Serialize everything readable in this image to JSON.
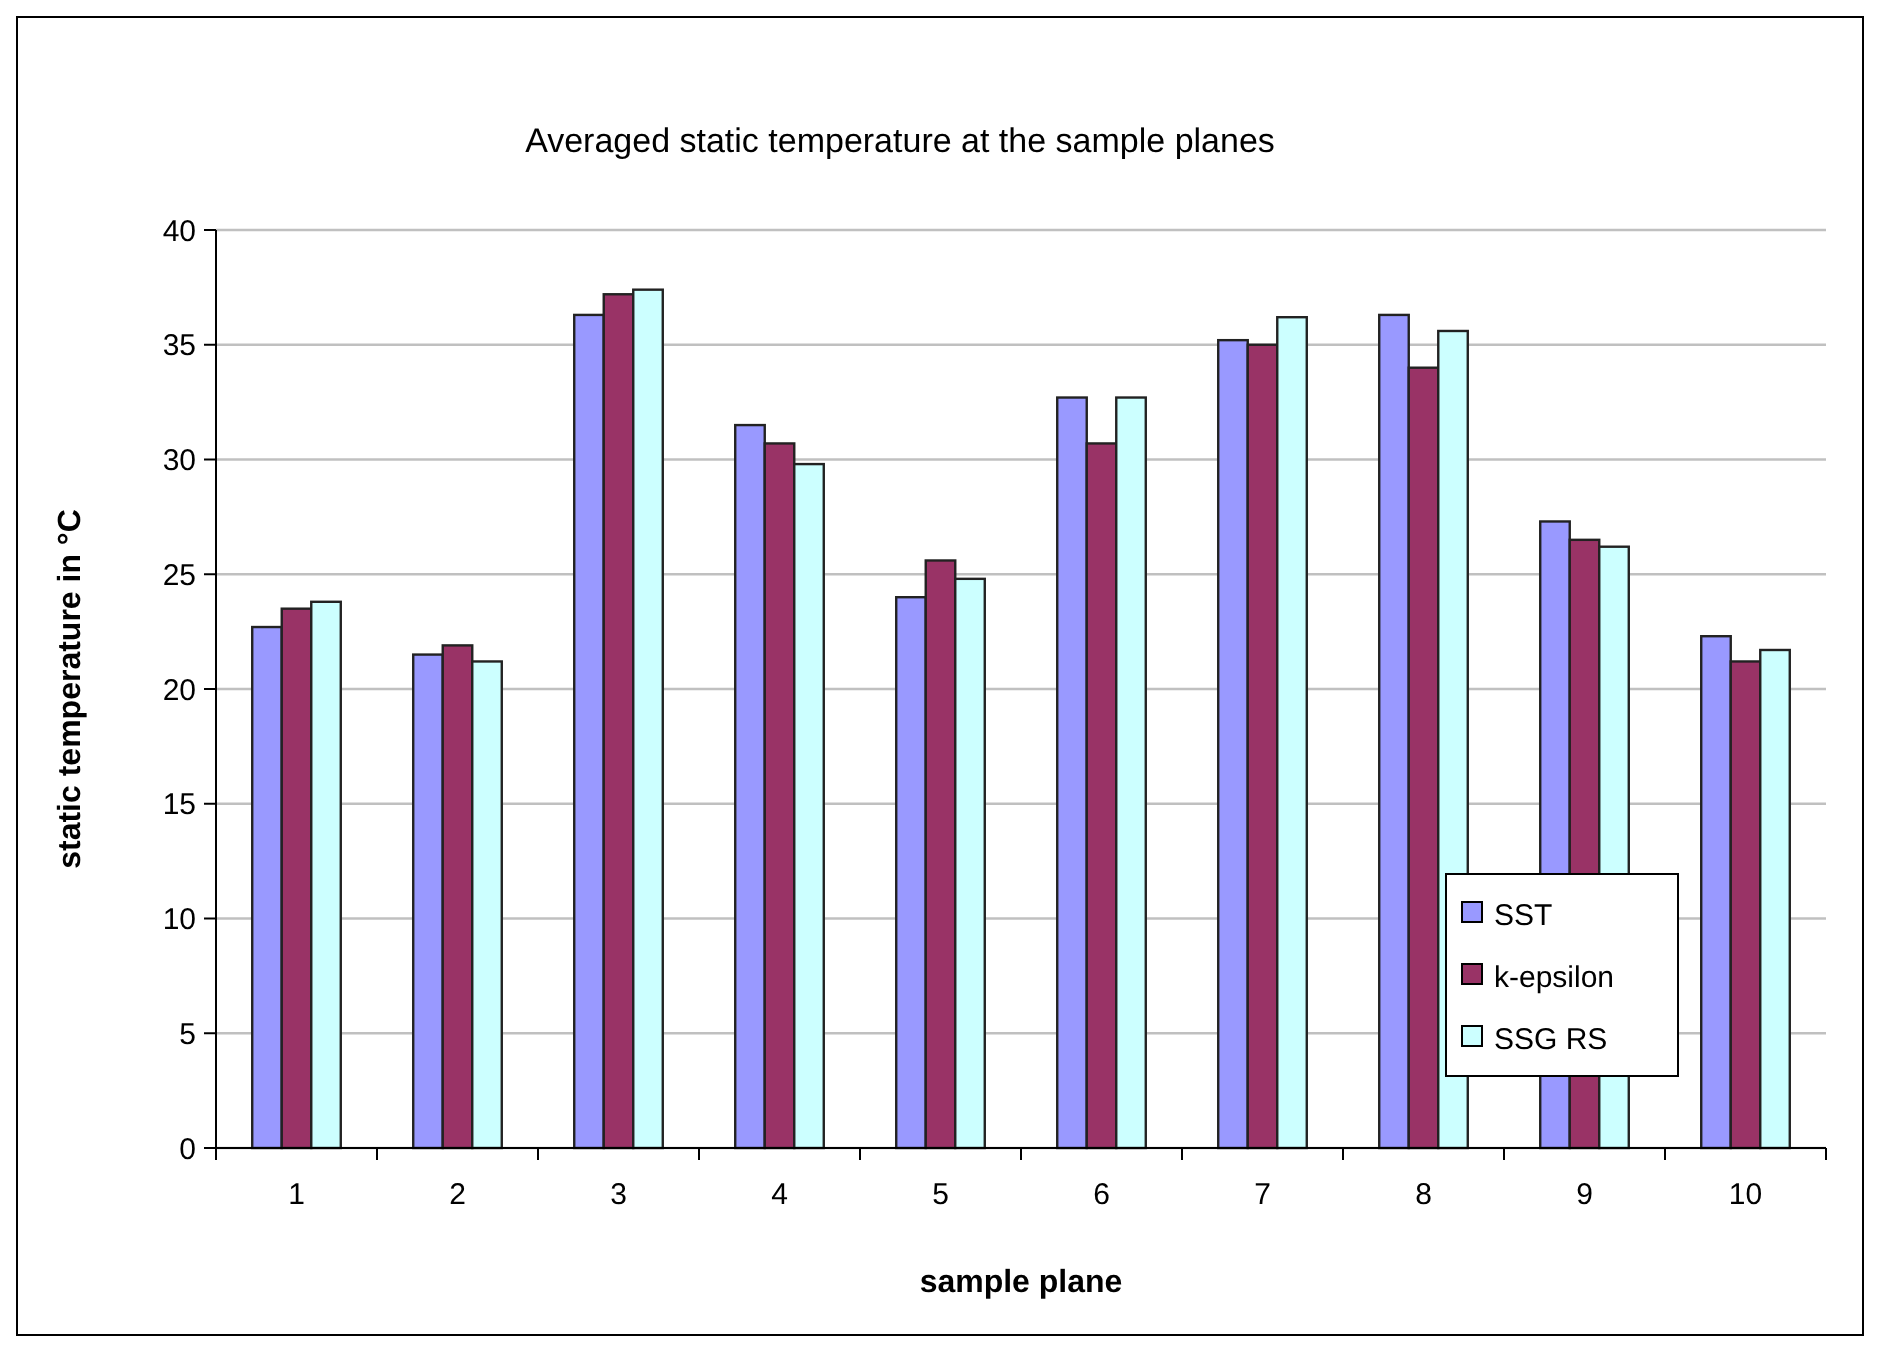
{
  "chart_data": {
    "type": "bar",
    "title": "Averaged static temperature at the sample planes",
    "xlabel": "sample plane",
    "ylabel": "static temperature in °C",
    "categories": [
      "1",
      "2",
      "3",
      "4",
      "5",
      "6",
      "7",
      "8",
      "9",
      "10"
    ],
    "series": [
      {
        "name": "SST",
        "color": "#9999ff",
        "values": [
          22.7,
          21.5,
          36.3,
          31.5,
          24.0,
          32.7,
          35.2,
          36.3,
          27.3,
          22.3
        ]
      },
      {
        "name": "k-epsilon",
        "color": "#993366",
        "values": [
          23.5,
          21.9,
          37.2,
          30.7,
          25.6,
          30.7,
          35.0,
          34.0,
          26.5,
          21.2
        ]
      },
      {
        "name": "SSG RS",
        "color": "#ccffff",
        "values": [
          23.8,
          21.2,
          37.4,
          29.8,
          24.8,
          32.7,
          36.2,
          35.6,
          26.2,
          21.7
        ]
      }
    ],
    "ylim": [
      0,
      40
    ],
    "yticks": [
      0,
      5,
      10,
      15,
      20,
      25,
      30,
      35,
      40
    ],
    "grid": "y",
    "legend": "right"
  }
}
